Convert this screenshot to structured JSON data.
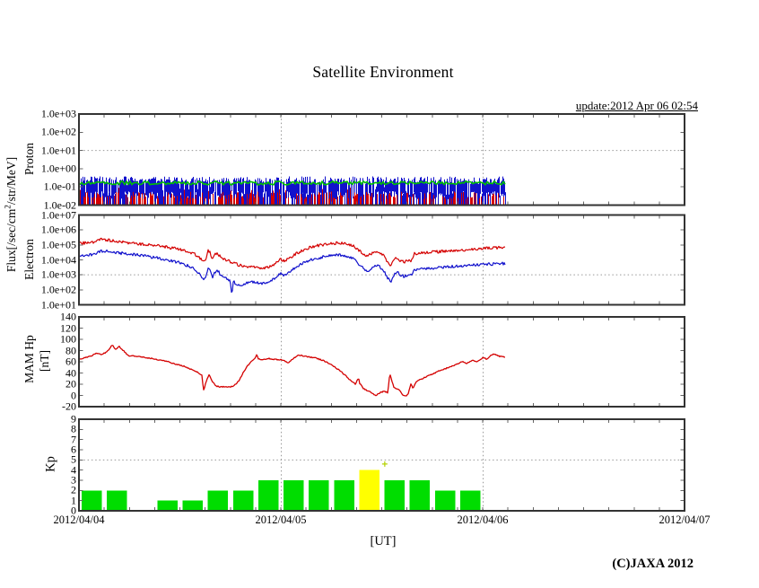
{
  "header": {
    "title": "Satellite Environment",
    "update": "update:2012 Apr 06 02:54"
  },
  "footer": {
    "xaxis_unit": "[UT]",
    "copyright": "(C)JAXA 2012"
  },
  "axis": {
    "flux_label": {
      "pre": "Flux[/sec/cm",
      "sup": "2",
      "post": "/str/MeV]"
    }
  },
  "time_axis": {
    "dates": [
      "2012/04/04",
      "2012/04/05",
      "2012/04/06",
      "2012/04/07"
    ],
    "days_total": 3,
    "tick_hours": 3,
    "gridline_days": [
      1,
      2
    ]
  },
  "colors": {
    "trace_red": "#d40000",
    "trace_blue": "#1111cc",
    "proton_green": "#00c000",
    "kp_green": "#00dd00",
    "kp_yellow": "#ffff00",
    "grid": "#999999",
    "border": "#333333"
  },
  "chart_data": [
    {
      "id": "proton",
      "type": "line",
      "ylabel": "Proton",
      "yscale": "log",
      "ylim": [
        0.01,
        1000
      ],
      "yticks": [
        "1.0e+03",
        "1.0e+02",
        "1.0e+01",
        "1.0e+00",
        "1.0e-01",
        "1.0e-02"
      ],
      "gridline_value": 10,
      "data_days": [
        0,
        2.112
      ],
      "description": "Dense noisy proton flux band between about 1e-2 and 3e-1",
      "series": [
        {
          "name": "proton-trace-blue",
          "color": "#1111cc",
          "band": [
            0.025,
            0.35
          ]
        },
        {
          "name": "proton-trace-green",
          "color": "#00c000",
          "band": [
            0.08,
            0.15
          ]
        },
        {
          "name": "proton-trace-red",
          "color": "#d40000",
          "band": [
            0.01,
            0.09
          ]
        }
      ]
    },
    {
      "id": "electron",
      "type": "line",
      "ylabel": "Electron",
      "yscale": "log",
      "ylim": [
        10,
        10000000
      ],
      "yticks": [
        "1.0e+07",
        "1.0e+06",
        "1.0e+05",
        "1.0e+04",
        "1.0e+03",
        "1.0e+02",
        "1.0e+01"
      ],
      "gridline_value": 1000,
      "data_days": [
        0,
        2.11
      ],
      "series": [
        {
          "name": "electron-trace-red",
          "color": "#d40000",
          "points": [
            [
              0,
              130000
            ],
            [
              0.04,
              140000
            ],
            [
              0.08,
              150000
            ],
            [
              0.11,
              230000
            ],
            [
              0.15,
              200000
            ],
            [
              0.2,
              160000
            ],
            [
              0.26,
              130000
            ],
            [
              0.32,
              110000
            ],
            [
              0.38,
              90000
            ],
            [
              0.44,
              70000
            ],
            [
              0.5,
              50000
            ],
            [
              0.54,
              35000
            ],
            [
              0.58,
              22000
            ],
            [
              0.61,
              10000
            ],
            [
              0.625,
              7000
            ],
            [
              0.64,
              45000
            ],
            [
              0.65,
              30000
            ],
            [
              0.66,
              10000
            ],
            [
              0.67,
              20000
            ],
            [
              0.685,
              28000
            ],
            [
              0.7,
              16000
            ],
            [
              0.73,
              10000
            ],
            [
              0.76,
              6500
            ],
            [
              0.8,
              4200
            ],
            [
              0.84,
              3200
            ],
            [
              0.87,
              3600
            ],
            [
              0.9,
              2900
            ],
            [
              0.93,
              3100
            ],
            [
              0.96,
              4500
            ],
            [
              0.985,
              7500
            ],
            [
              1,
              11000
            ],
            [
              1.02,
              8500
            ],
            [
              1.05,
              16000
            ],
            [
              1.09,
              32000
            ],
            [
              1.13,
              60000
            ],
            [
              1.18,
              90000
            ],
            [
              1.23,
              115000
            ],
            [
              1.28,
              135000
            ],
            [
              1.32,
              120000
            ],
            [
              1.36,
              80000
            ],
            [
              1.39,
              40000
            ],
            [
              1.41,
              25000
            ],
            [
              1.43,
              18000
            ],
            [
              1.45,
              26000
            ],
            [
              1.47,
              35000
            ],
            [
              1.49,
              30000
            ],
            [
              1.51,
              18000
            ],
            [
              1.53,
              7000
            ],
            [
              1.545,
              4500
            ],
            [
              1.56,
              9000
            ],
            [
              1.575,
              14000
            ],
            [
              1.59,
              9000
            ],
            [
              1.61,
              7500
            ],
            [
              1.63,
              8500
            ],
            [
              1.65,
              9500
            ],
            [
              1.66,
              26000
            ],
            [
              1.7,
              30000
            ],
            [
              1.75,
              33000
            ],
            [
              1.8,
              37000
            ],
            [
              1.85,
              41000
            ],
            [
              1.9,
              45000
            ],
            [
              1.95,
              51000
            ],
            [
              2,
              57000
            ],
            [
              2.05,
              63000
            ],
            [
              2.11,
              68000
            ]
          ]
        },
        {
          "name": "electron-trace-blue",
          "color": "#1111cc",
          "points": [
            [
              0,
              18000
            ],
            [
              0.04,
              20000
            ],
            [
              0.08,
              23000
            ],
            [
              0.11,
              40000
            ],
            [
              0.15,
              36000
            ],
            [
              0.2,
              29000
            ],
            [
              0.26,
              24000
            ],
            [
              0.32,
              19000
            ],
            [
              0.38,
              14000
            ],
            [
              0.44,
              10000
            ],
            [
              0.5,
              6500
            ],
            [
              0.54,
              4000
            ],
            [
              0.58,
              2200
            ],
            [
              0.61,
              700
            ],
            [
              0.625,
              450
            ],
            [
              0.64,
              3500
            ],
            [
              0.65,
              2200
            ],
            [
              0.66,
              600
            ],
            [
              0.67,
              1200
            ],
            [
              0.685,
              2200
            ],
            [
              0.7,
              1100
            ],
            [
              0.72,
              800
            ],
            [
              0.735,
              500
            ],
            [
              0.75,
              400
            ],
            [
              0.757,
              35
            ],
            [
              0.765,
              350
            ],
            [
              0.78,
              250
            ],
            [
              0.8,
              200
            ],
            [
              0.82,
              260
            ],
            [
              0.84,
              300
            ],
            [
              0.87,
              340
            ],
            [
              0.9,
              270
            ],
            [
              0.93,
              310
            ],
            [
              0.96,
              480
            ],
            [
              0.985,
              850
            ],
            [
              1,
              1200
            ],
            [
              1.02,
              950
            ],
            [
              1.05,
              2000
            ],
            [
              1.09,
              4200
            ],
            [
              1.13,
              8500
            ],
            [
              1.18,
              13000
            ],
            [
              1.23,
              18000
            ],
            [
              1.28,
              22000
            ],
            [
              1.32,
              19000
            ],
            [
              1.36,
              11000
            ],
            [
              1.39,
              5000
            ],
            [
              1.41,
              2800
            ],
            [
              1.43,
              1800
            ],
            [
              1.45,
              2800
            ],
            [
              1.47,
              4200
            ],
            [
              1.49,
              3500
            ],
            [
              1.51,
              2000
            ],
            [
              1.53,
              600
            ],
            [
              1.545,
              350
            ],
            [
              1.56,
              900
            ],
            [
              1.575,
              1600
            ],
            [
              1.59,
              1000
            ],
            [
              1.61,
              800
            ],
            [
              1.63,
              900
            ],
            [
              1.65,
              1000
            ],
            [
              1.66,
              2200
            ],
            [
              1.7,
              2600
            ],
            [
              1.75,
              2900
            ],
            [
              1.8,
              3200
            ],
            [
              1.85,
              3600
            ],
            [
              1.9,
              4000
            ],
            [
              1.95,
              4500
            ],
            [
              2,
              4900
            ],
            [
              2.05,
              5300
            ],
            [
              2.11,
              5700
            ]
          ]
        }
      ]
    },
    {
      "id": "mam-hp",
      "type": "line",
      "ylabel_lines": [
        "MAM Hp",
        "[nT]"
      ],
      "yscale": "linear",
      "ylim": [
        -20,
        140
      ],
      "yticks": [
        "140",
        "120",
        "100",
        "80",
        "60",
        "40",
        "20",
        "0",
        "-20"
      ],
      "data_days": [
        0,
        2.11
      ],
      "series": [
        {
          "name": "mam-hp-trace",
          "color": "#d40000",
          "points": [
            [
              0,
              65
            ],
            [
              0.03,
              67
            ],
            [
              0.06,
              70
            ],
            [
              0.09,
              76
            ],
            [
              0.11,
              72
            ],
            [
              0.14,
              78
            ],
            [
              0.165,
              90
            ],
            [
              0.18,
              82
            ],
            [
              0.2,
              87
            ],
            [
              0.22,
              80
            ],
            [
              0.245,
              71
            ],
            [
              0.28,
              70
            ],
            [
              0.32,
              68
            ],
            [
              0.36,
              66
            ],
            [
              0.4,
              63
            ],
            [
              0.44,
              60
            ],
            [
              0.48,
              56
            ],
            [
              0.52,
              52
            ],
            [
              0.56,
              46
            ],
            [
              0.59,
              41
            ],
            [
              0.61,
              35
            ],
            [
              0.617,
              8
            ],
            [
              0.625,
              18
            ],
            [
              0.635,
              30
            ],
            [
              0.645,
              37
            ],
            [
              0.66,
              25
            ],
            [
              0.68,
              17
            ],
            [
              0.7,
              15
            ],
            [
              0.73,
              16
            ],
            [
              0.75,
              15
            ],
            [
              0.77,
              18
            ],
            [
              0.79,
              25
            ],
            [
              0.81,
              38
            ],
            [
              0.83,
              50
            ],
            [
              0.85,
              60
            ],
            [
              0.87,
              65
            ],
            [
              0.88,
              72
            ],
            [
              0.89,
              65
            ],
            [
              0.91,
              64
            ],
            [
              0.94,
              66
            ],
            [
              0.97,
              64
            ],
            [
              1,
              64
            ],
            [
              1.02,
              62
            ],
            [
              1.035,
              57
            ],
            [
              1.05,
              62
            ],
            [
              1.07,
              68
            ],
            [
              1.09,
              72
            ],
            [
              1.12,
              70
            ],
            [
              1.15,
              68
            ],
            [
              1.18,
              66
            ],
            [
              1.21,
              62
            ],
            [
              1.24,
              57
            ],
            [
              1.27,
              50
            ],
            [
              1.3,
              42
            ],
            [
              1.33,
              32
            ],
            [
              1.35,
              25
            ],
            [
              1.37,
              20
            ],
            [
              1.385,
              32
            ],
            [
              1.39,
              22
            ],
            [
              1.41,
              12
            ],
            [
              1.43,
              8
            ],
            [
              1.45,
              5
            ],
            [
              1.47,
              0
            ],
            [
              1.49,
              4
            ],
            [
              1.51,
              8
            ],
            [
              1.53,
              5
            ],
            [
              1.54,
              40
            ],
            [
              1.55,
              25
            ],
            [
              1.56,
              15
            ],
            [
              1.57,
              12
            ],
            [
              1.585,
              10
            ],
            [
              1.6,
              3
            ],
            [
              1.615,
              -2
            ],
            [
              1.63,
              2
            ],
            [
              1.645,
              22
            ],
            [
              1.655,
              12
            ],
            [
              1.67,
              25
            ],
            [
              1.69,
              28
            ],
            [
              1.72,
              33
            ],
            [
              1.75,
              38
            ],
            [
              1.78,
              43
            ],
            [
              1.81,
              47
            ],
            [
              1.84,
              51
            ],
            [
              1.87,
              55
            ],
            [
              1.9,
              60
            ],
            [
              1.92,
              57
            ],
            [
              1.95,
              62
            ],
            [
              1.97,
              60
            ],
            [
              2,
              67
            ],
            [
              2.02,
              65
            ],
            [
              2.045,
              72
            ],
            [
              2.06,
              74
            ],
            [
              2.08,
              70
            ],
            [
              2.11,
              68
            ]
          ]
        }
      ]
    },
    {
      "id": "kp",
      "type": "bar",
      "ylabel": "Kp",
      "ylim": [
        0,
        9
      ],
      "yticks": [
        "9",
        "8",
        "7",
        "6",
        "5",
        "4",
        "3",
        "2",
        "1",
        "0"
      ],
      "gridline_value": 5,
      "bar_hours": 3,
      "values": [
        2,
        2,
        0,
        1,
        1,
        2,
        2,
        3,
        3,
        3,
        3,
        4,
        3,
        3,
        2,
        2
      ],
      "warning_threshold": 4,
      "bar_color_normal": "#00dd00",
      "bar_color_warning": "#ffff00",
      "marker": {
        "symbol": "+",
        "x_day": 1.515,
        "value": 4.6,
        "color": "#b4d200"
      }
    }
  ]
}
